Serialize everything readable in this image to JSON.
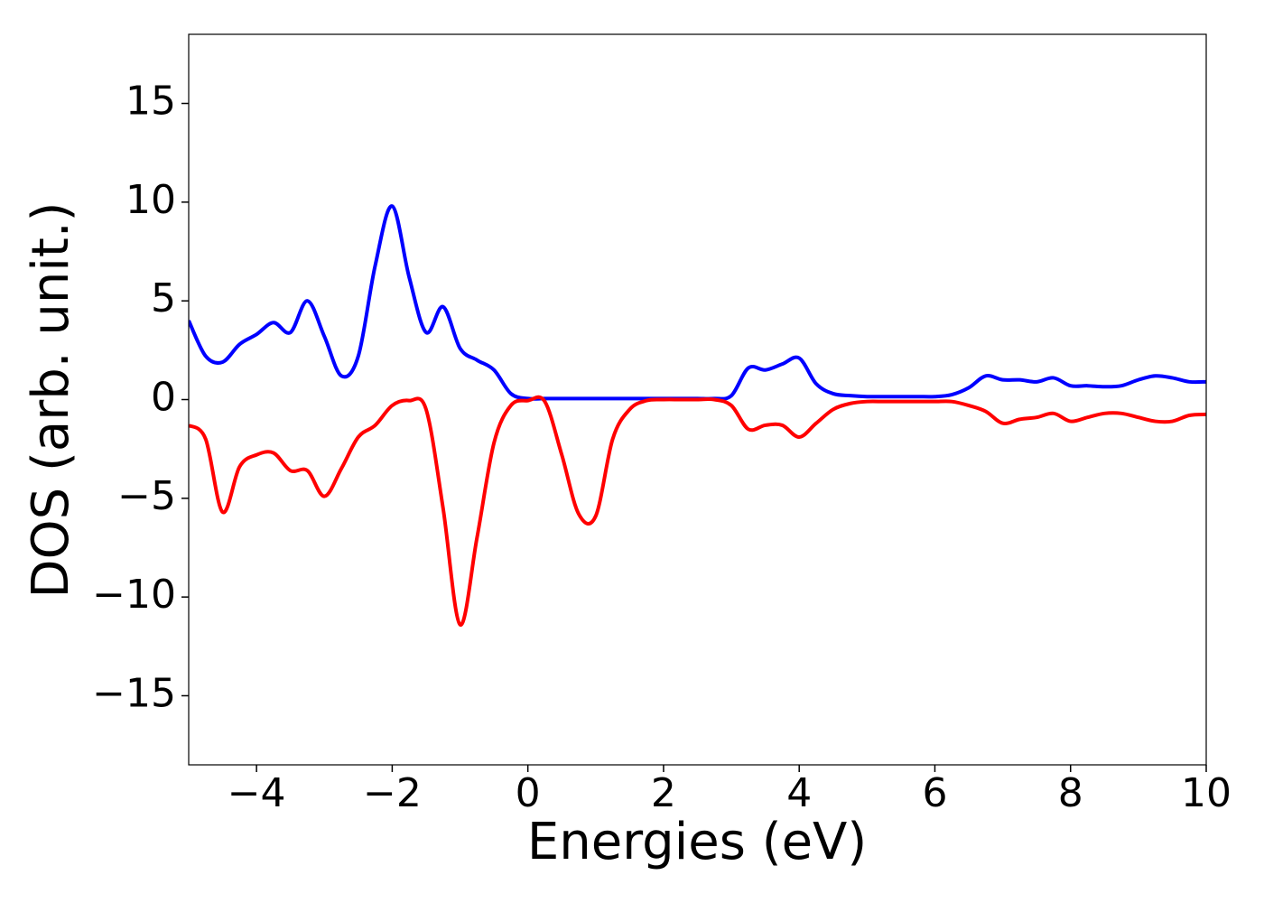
{
  "chart_data": {
    "type": "line",
    "xlabel": "Energies (eV)",
    "ylabel": "DOS (arb. unit.)",
    "x": [
      -5,
      -4.75,
      -4.5,
      -4.25,
      -4,
      -3.75,
      -3.5,
      -3.25,
      -3,
      -2.75,
      -2.5,
      -2.25,
      -2,
      -1.75,
      -1.5,
      -1.25,
      -1,
      -0.75,
      -0.5,
      -0.25,
      0,
      0.25,
      0.5,
      0.75,
      1,
      1.25,
      1.5,
      1.75,
      2,
      2.25,
      2.5,
      2.75,
      3,
      3.25,
      3.5,
      3.75,
      4,
      4.25,
      4.5,
      4.75,
      5,
      5.25,
      5.5,
      5.75,
      6,
      6.25,
      6.5,
      6.75,
      7,
      7.25,
      7.5,
      7.75,
      8,
      8.25,
      8.5,
      8.75,
      9,
      9.25,
      9.5,
      9.75,
      10
    ],
    "series": [
      {
        "color": "#0000ff",
        "values": [
          4.0,
          2.2,
          1.9,
          2.8,
          3.3,
          3.9,
          3.4,
          5.0,
          3.2,
          1.2,
          2.2,
          6.8,
          9.8,
          6.2,
          3.4,
          4.7,
          2.6,
          2.0,
          1.5,
          0.3,
          0.05,
          0.05,
          0.05,
          0.05,
          0.05,
          0.05,
          0.05,
          0.05,
          0.05,
          0.05,
          0.05,
          0.05,
          0.2,
          1.6,
          1.5,
          1.8,
          2.1,
          0.8,
          0.3,
          0.2,
          0.15,
          0.15,
          0.15,
          0.15,
          0.15,
          0.25,
          0.6,
          1.2,
          1.0,
          1.0,
          0.9,
          1.1,
          0.7,
          0.7,
          0.65,
          0.7,
          1.0,
          1.2,
          1.1,
          0.9,
          0.9
        ]
      },
      {
        "color": "#ff0000",
        "values": [
          -1.3,
          -2.0,
          -5.7,
          -3.4,
          -2.8,
          -2.7,
          -3.6,
          -3.6,
          -4.9,
          -3.5,
          -1.9,
          -1.3,
          -0.3,
          -0.05,
          -0.5,
          -5.5,
          -11.4,
          -7,
          -2.2,
          -0.3,
          -0.05,
          -0.1,
          -2.8,
          -5.8,
          -5.9,
          -2.0,
          -0.5,
          -0.05,
          0,
          0,
          0,
          0,
          -0.3,
          -1.5,
          -1.3,
          -1.3,
          -1.9,
          -1.2,
          -0.5,
          -0.2,
          -0.1,
          -0.1,
          -0.1,
          -0.1,
          -0.1,
          -0.1,
          -0.3,
          -0.6,
          -1.2,
          -1.0,
          -0.9,
          -0.7,
          -1.1,
          -0.9,
          -0.7,
          -0.7,
          -0.9,
          -1.1,
          -1.1,
          -0.8,
          -0.75
        ]
      }
    ],
    "xlim": [
      -5,
      10
    ],
    "xticks": [
      {
        "value": -4,
        "label": "−4"
      },
      {
        "value": -2,
        "label": "−2"
      },
      0,
      2,
      4,
      6,
      8,
      10
    ],
    "ylim": [
      -18.5,
      18.5
    ],
    "yticks": [
      {
        "value": -15,
        "label": "−15"
      },
      {
        "value": -10,
        "label": "−10"
      },
      {
        "value": -5,
        "label": "−5"
      },
      0,
      5,
      10,
      15
    ],
    "grid": false
  }
}
